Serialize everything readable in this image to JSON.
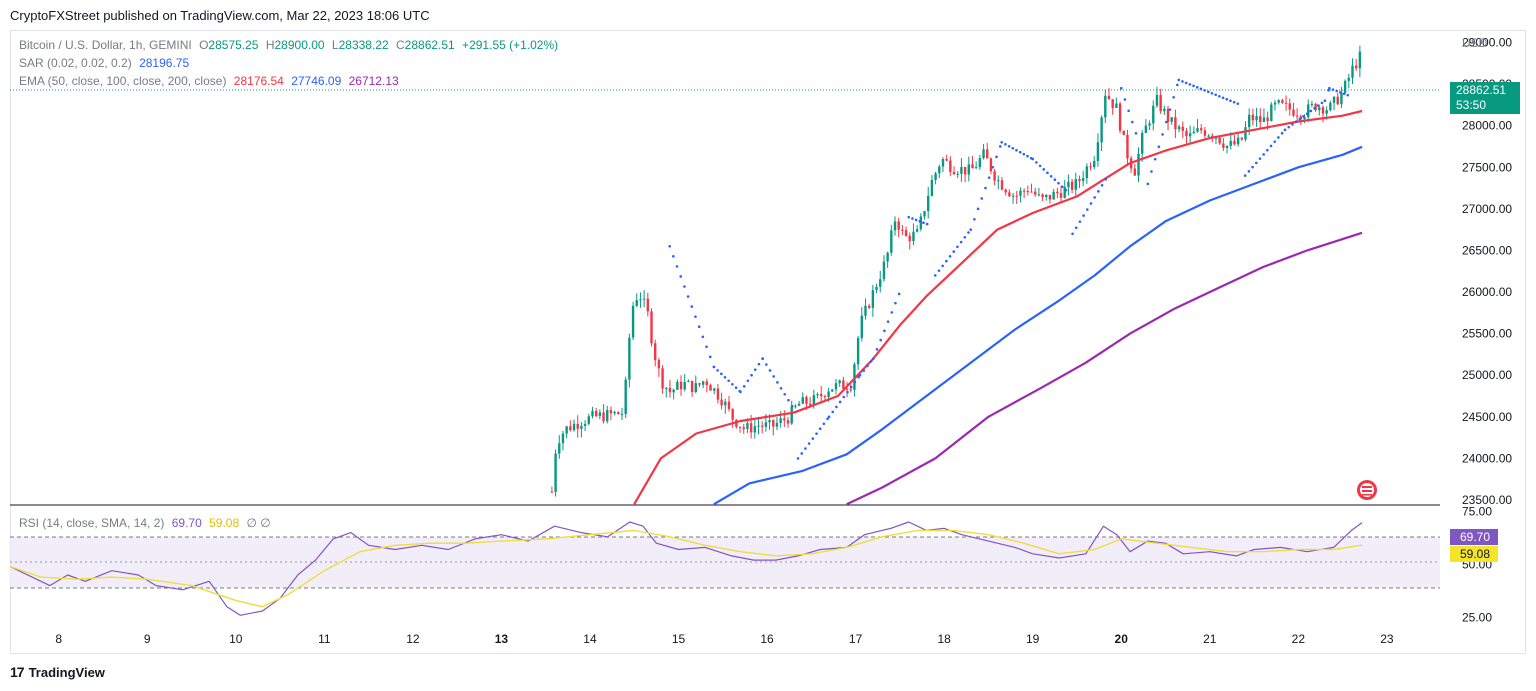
{
  "publish_line": "CryptoFXStreet published on TradingView.com, Mar 22, 2023 18:06 UTC",
  "branding": {
    "logo_text": "TradingView",
    "logo_glyph": "17"
  },
  "legend": {
    "symbol": "Bitcoin / U.S. Dollar, 1h, GEMINI",
    "open_label": "O",
    "open": "28575.25",
    "high_label": "H",
    "high": "28900.00",
    "low_label": "L",
    "low": "28338.22",
    "close_label": "C",
    "close": "28862.51",
    "change": "+291.55 (+1.02%)",
    "sar_label": "SAR (0.02, 0.02, 0.2)",
    "sar_value": "28196.75",
    "ema_label": "EMA (50, close, 100, close, 200, close)",
    "ema50": "28176.54",
    "ema100": "27746.09",
    "ema200": "26712.13",
    "rsi_label": "RSI (14, close, SMA, 14, 2)",
    "rsi_value": "69.70",
    "rsi_sma": "59.08",
    "rsi_extra": "∅ ∅"
  },
  "currency": "USD",
  "last_price_tag": {
    "price": "28862.51",
    "countdown": "53:50"
  },
  "rsi_tags": {
    "rsi": "69.70",
    "sma": "59.08"
  },
  "colors": {
    "up": "#089981",
    "down": "#f23645",
    "sar": "#2962ff",
    "ema50": "#f23645",
    "ema100": "#2962ff",
    "ema200": "#9c27b0",
    "rsi": "#7e57c2",
    "rsi_sma": "#f0dc3c",
    "rsi_band": "#ede7f6"
  },
  "chart_data": [
    {
      "type": "candlestick",
      "title": "Bitcoin / U.S. Dollar, 1h, GEMINI",
      "x_ticks": [
        "8",
        "9",
        "10",
        "11",
        "12",
        "13",
        "14",
        "15",
        "16",
        "17",
        "18",
        "19",
        "20",
        "21",
        "22",
        "23"
      ],
      "y_ticks": [
        "23500.00",
        "24000.00",
        "24500.00",
        "25000.00",
        "25500.00",
        "26000.00",
        "26500.00",
        "27000.00",
        "27500.00",
        "28000.00",
        "28500.00",
        "29000.00"
      ],
      "x_range": [
        7.45,
        23.6
      ],
      "ylim": [
        23440,
        29150
      ],
      "price_path_day_value": [
        [
          13.57,
          23600
        ],
        [
          13.62,
          24200
        ],
        [
          13.72,
          24350
        ],
        [
          13.9,
          24450
        ],
        [
          14.05,
          24500
        ],
        [
          14.2,
          24520
        ],
        [
          14.38,
          24550
        ],
        [
          14.47,
          25800
        ],
        [
          14.55,
          26000
        ],
        [
          14.65,
          25750
        ],
        [
          14.72,
          25300
        ],
        [
          14.8,
          24950
        ],
        [
          14.9,
          24800
        ],
        [
          15.05,
          24900
        ],
        [
          15.2,
          24850
        ],
        [
          15.3,
          24950
        ],
        [
          15.5,
          24700
        ],
        [
          15.6,
          24500
        ],
        [
          15.75,
          24350
        ],
        [
          15.9,
          24400
        ],
        [
          16.05,
          24380
        ],
        [
          16.25,
          24500
        ],
        [
          16.35,
          24650
        ],
        [
          16.55,
          24700
        ],
        [
          16.7,
          24850
        ],
        [
          16.95,
          24900
        ],
        [
          17.05,
          25600
        ],
        [
          17.2,
          26000
        ],
        [
          17.35,
          26400
        ],
        [
          17.45,
          26900
        ],
        [
          17.55,
          26650
        ],
        [
          17.7,
          26700
        ],
        [
          17.85,
          27300
        ],
        [
          17.97,
          27600
        ],
        [
          18.1,
          27500
        ],
        [
          18.3,
          27450
        ],
        [
          18.45,
          27650
        ],
        [
          18.6,
          27350
        ],
        [
          18.8,
          27150
        ],
        [
          18.95,
          27250
        ],
        [
          19.1,
          27100
        ],
        [
          19.3,
          27200
        ],
        [
          19.5,
          27300
        ],
        [
          19.7,
          27650
        ],
        [
          19.82,
          28400
        ],
        [
          19.95,
          28200
        ],
        [
          20.05,
          27700
        ],
        [
          20.15,
          27450
        ],
        [
          20.25,
          27900
        ],
        [
          20.4,
          28300
        ],
        [
          20.55,
          28050
        ],
        [
          20.75,
          27850
        ],
        [
          20.9,
          27950
        ],
        [
          21.05,
          27900
        ],
        [
          21.2,
          27750
        ],
        [
          21.35,
          27800
        ],
        [
          21.45,
          28100
        ],
        [
          21.6,
          28050
        ],
        [
          21.75,
          28250
        ],
        [
          21.9,
          28200
        ],
        [
          22.05,
          28150
        ],
        [
          22.2,
          28250
        ],
        [
          22.35,
          28200
        ],
        [
          22.5,
          28400
        ],
        [
          22.62,
          28700
        ],
        [
          22.72,
          28862.51
        ]
      ],
      "sar_path_day_value": [
        [
          14.9,
          26550
        ],
        [
          15.4,
          25100
        ],
        [
          15.7,
          24800
        ],
        [
          15.95,
          25200
        ],
        [
          16.3,
          24600
        ],
        [
          16.35,
          24000
        ],
        [
          16.7,
          24500
        ],
        [
          17.05,
          25000
        ],
        [
          17.2,
          25200
        ],
        [
          17.5,
          26000
        ],
        [
          17.6,
          26900
        ],
        [
          17.85,
          26800
        ],
        [
          17.9,
          26200
        ],
        [
          18.3,
          26750
        ],
        [
          18.65,
          27800
        ],
        [
          19.0,
          27600
        ],
        [
          19.4,
          27200
        ],
        [
          19.45,
          26700
        ],
        [
          19.85,
          27400
        ],
        [
          20.0,
          28450
        ],
        [
          20.2,
          27800
        ],
        [
          20.3,
          27300
        ],
        [
          20.65,
          28550
        ],
        [
          21.35,
          28250
        ],
        [
          21.4,
          27400
        ],
        [
          21.85,
          27950
        ],
        [
          22.3,
          28300
        ],
        [
          22.35,
          28450
        ],
        [
          22.6,
          28350
        ]
      ],
      "ema_paths_day_value": {
        "ema50": [
          [
            14.5,
            23450
          ],
          [
            14.8,
            24000
          ],
          [
            15.2,
            24300
          ],
          [
            15.7,
            24450
          ],
          [
            16.3,
            24550
          ],
          [
            16.8,
            24750
          ],
          [
            17.2,
            25200
          ],
          [
            17.5,
            25600
          ],
          [
            17.8,
            25950
          ],
          [
            18.2,
            26350
          ],
          [
            18.6,
            26750
          ],
          [
            19.0,
            26950
          ],
          [
            19.5,
            27150
          ],
          [
            19.8,
            27350
          ],
          [
            20.1,
            27550
          ],
          [
            20.5,
            27700
          ],
          [
            21.0,
            27850
          ],
          [
            21.5,
            27950
          ],
          [
            22.0,
            28050
          ],
          [
            22.5,
            28120
          ],
          [
            22.72,
            28176.54
          ]
        ],
        "ema100": [
          [
            15.4,
            23450
          ],
          [
            15.8,
            23700
          ],
          [
            16.4,
            23850
          ],
          [
            16.9,
            24050
          ],
          [
            17.3,
            24350
          ],
          [
            17.8,
            24750
          ],
          [
            18.3,
            25150
          ],
          [
            18.8,
            25550
          ],
          [
            19.3,
            25900
          ],
          [
            19.7,
            26200
          ],
          [
            20.1,
            26550
          ],
          [
            20.5,
            26850
          ],
          [
            21.0,
            27100
          ],
          [
            21.5,
            27300
          ],
          [
            22.0,
            27500
          ],
          [
            22.5,
            27650
          ],
          [
            22.72,
            27746.09
          ]
        ],
        "ema200": [
          [
            16.9,
            23450
          ],
          [
            17.3,
            23650
          ],
          [
            17.9,
            24000
          ],
          [
            18.5,
            24500
          ],
          [
            19.1,
            24850
          ],
          [
            19.6,
            25150
          ],
          [
            20.1,
            25500
          ],
          [
            20.6,
            25800
          ],
          [
            21.1,
            26050
          ],
          [
            21.6,
            26300
          ],
          [
            22.1,
            26500
          ],
          [
            22.72,
            26712.13
          ]
        ]
      }
    },
    {
      "type": "line",
      "title": "RSI (14, close, SMA, 14, 2)",
      "y_ticks": [
        "25.00",
        "50.00",
        "75.00"
      ],
      "ylim": [
        20,
        78
      ],
      "series": [
        {
          "name": "RSI",
          "points_day_value": [
            [
              7.45,
              49
            ],
            [
              7.7,
              44
            ],
            [
              7.9,
              40
            ],
            [
              8.1,
              45
            ],
            [
              8.3,
              42
            ],
            [
              8.6,
              47
            ],
            [
              8.9,
              45
            ],
            [
              9.1,
              40
            ],
            [
              9.4,
              38
            ],
            [
              9.7,
              42
            ],
            [
              9.9,
              30
            ],
            [
              10.05,
              26
            ],
            [
              10.3,
              28
            ],
            [
              10.5,
              34
            ],
            [
              10.7,
              45
            ],
            [
              10.9,
              52
            ],
            [
              11.1,
              62
            ],
            [
              11.3,
              65
            ],
            [
              11.5,
              59
            ],
            [
              11.8,
              57
            ],
            [
              12.1,
              59
            ],
            [
              12.4,
              57
            ],
            [
              12.7,
              62
            ],
            [
              13.0,
              64
            ],
            [
              13.3,
              61
            ],
            [
              13.6,
              68
            ],
            [
              13.9,
              65
            ],
            [
              14.2,
              63
            ],
            [
              14.45,
              70
            ],
            [
              14.6,
              68
            ],
            [
              14.75,
              60
            ],
            [
              15.0,
              57
            ],
            [
              15.3,
              58
            ],
            [
              15.6,
              54
            ],
            [
              15.85,
              52
            ],
            [
              16.1,
              52
            ],
            [
              16.35,
              54
            ],
            [
              16.6,
              57
            ],
            [
              16.9,
              58
            ],
            [
              17.1,
              64
            ],
            [
              17.4,
              67
            ],
            [
              17.6,
              70
            ],
            [
              17.8,
              66
            ],
            [
              18.0,
              67
            ],
            [
              18.2,
              64
            ],
            [
              18.5,
              61
            ],
            [
              18.8,
              58
            ],
            [
              19.0,
              55
            ],
            [
              19.3,
              53
            ],
            [
              19.6,
              55
            ],
            [
              19.8,
              68
            ],
            [
              19.95,
              64
            ],
            [
              20.1,
              56
            ],
            [
              20.3,
              61
            ],
            [
              20.5,
              60
            ],
            [
              20.7,
              55
            ],
            [
              21.0,
              56
            ],
            [
              21.3,
              54
            ],
            [
              21.5,
              57
            ],
            [
              21.8,
              58
            ],
            [
              22.1,
              56
            ],
            [
              22.4,
              58
            ],
            [
              22.6,
              66
            ],
            [
              22.72,
              69.7
            ]
          ]
        },
        {
          "name": "SMA",
          "points_day_value": [
            [
              7.45,
              49
            ],
            [
              7.8,
              44
            ],
            [
              8.2,
              43
            ],
            [
              8.6,
              44
            ],
            [
              9.0,
              43
            ],
            [
              9.5,
              40
            ],
            [
              10.0,
              33
            ],
            [
              10.3,
              30
            ],
            [
              10.6,
              36
            ],
            [
              11.0,
              47
            ],
            [
              11.4,
              56
            ],
            [
              11.8,
              59
            ],
            [
              12.2,
              60
            ],
            [
              12.6,
              60
            ],
            [
              13.0,
              61
            ],
            [
              13.5,
              62
            ],
            [
              14.0,
              64
            ],
            [
              14.5,
              66
            ],
            [
              14.9,
              63
            ],
            [
              15.3,
              59
            ],
            [
              15.7,
              56
            ],
            [
              16.1,
              54
            ],
            [
              16.5,
              55
            ],
            [
              16.9,
              58
            ],
            [
              17.3,
              63
            ],
            [
              17.7,
              66
            ],
            [
              18.1,
              66
            ],
            [
              18.5,
              64
            ],
            [
              18.9,
              60
            ],
            [
              19.3,
              55
            ],
            [
              19.7,
              57
            ],
            [
              20.0,
              62
            ],
            [
              20.4,
              60
            ],
            [
              20.8,
              58
            ],
            [
              21.2,
              56
            ],
            [
              21.6,
              56
            ],
            [
              22.0,
              57
            ],
            [
              22.4,
              57
            ],
            [
              22.72,
              59.08
            ]
          ]
        }
      ]
    }
  ]
}
